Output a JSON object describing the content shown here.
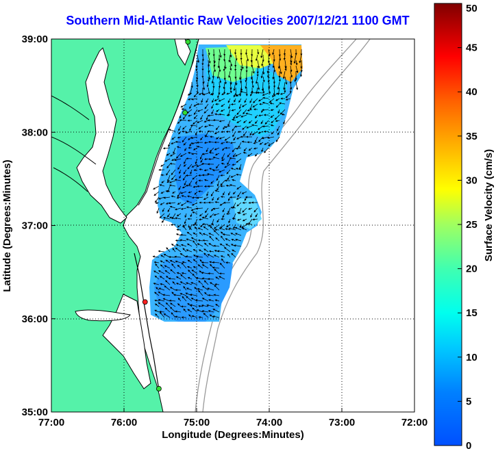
{
  "title": "Southern Mid-Atlantic Raw Velocities 2007/12/21 1100 GMT",
  "map": {
    "xlabel": "Longitude (Degrees:Minutes)",
    "ylabel": "Latitude (Degrees:Minutes)",
    "lon_range": [
      -77,
      -72
    ],
    "lat_range": [
      35,
      39
    ],
    "x_ticks": [
      "77:00",
      "76:00",
      "75:00",
      "74:00",
      "73:00",
      "72:00"
    ],
    "y_ticks": [
      "39:00",
      "38:00",
      "37:00",
      "36:00",
      "35:00"
    ],
    "grid": true,
    "land_color": "#55f2a9",
    "stations": [
      {
        "lon": -75.12,
        "lat": 38.97,
        "color": "#33dd33"
      },
      {
        "lon": -75.16,
        "lat": 38.21,
        "color": "#33dd33"
      },
      {
        "lon": -75.71,
        "lat": 36.18,
        "color": "#ff2020"
      },
      {
        "lon": -75.52,
        "lat": 35.25,
        "color": "#33dd33"
      }
    ]
  },
  "colorbar": {
    "label": "Surface Velocity (cm/s)",
    "min": 0,
    "max": 50,
    "ticks": [
      "0",
      "5",
      "10",
      "15",
      "20",
      "25",
      "30",
      "35",
      "40",
      "45",
      "50"
    ],
    "colormap": "jet"
  }
}
